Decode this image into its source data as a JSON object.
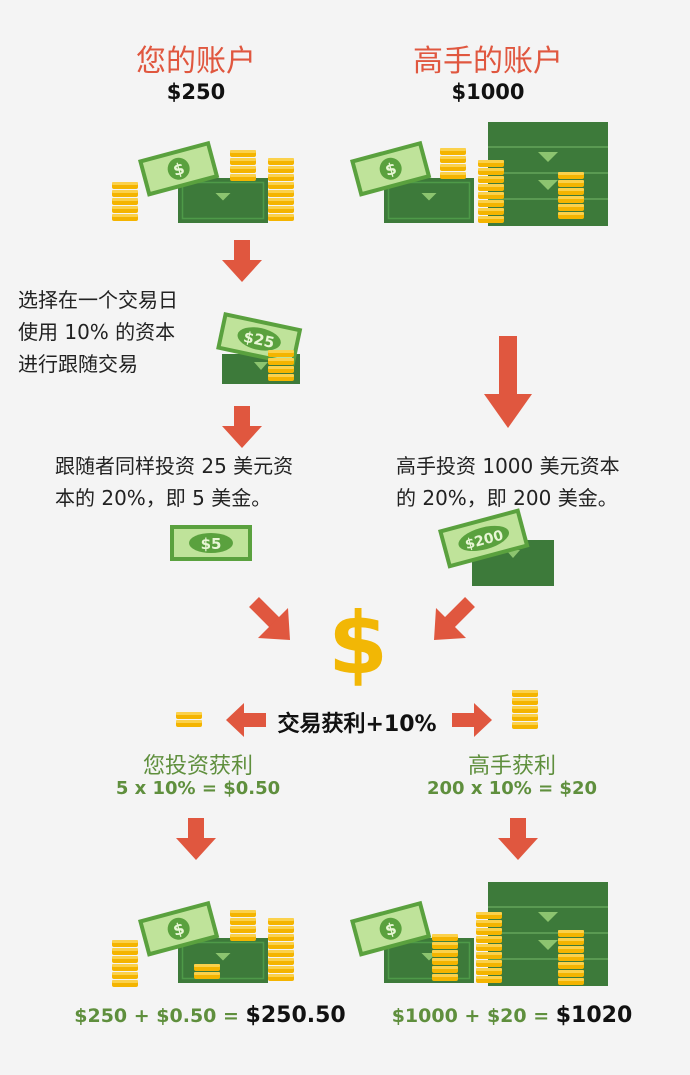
{
  "left": {
    "title": "您的账户",
    "amount": "$250",
    "step1": [
      "选择在一个交易日",
      "使用 10% 的资本",
      "进行跟随交易"
    ],
    "step1_bill": "$25",
    "step2": [
      "跟随者同样投资 25 美元资",
      "本的 20%，即 5 美金。"
    ],
    "step2_bill": "$5",
    "profit_title": "您投资获利",
    "profit_calc": "5 x 10% = $0.50",
    "final_prefix": "$250 + $0.50 = ",
    "final_total": "$250.50"
  },
  "right": {
    "title": "高手的账户",
    "amount": "$1000",
    "step2": [
      "高手投资 1000 美元资本",
      "的 20%，即 200 美金。"
    ],
    "step2_bill": "$200",
    "profit_title": "高手获利",
    "profit_calc": "200 x 10% = $20",
    "final_prefix": "$1000 + $20 = ",
    "final_total": "$1020"
  },
  "center": {
    "dollar_sign": "$",
    "trade_profit": "交易获利+10%"
  },
  "colors": {
    "accent_red": "#e0573f",
    "money_green": "#5f8f3d",
    "coin_gold": "#f4b400",
    "dollar_gold": "#f2b705"
  }
}
